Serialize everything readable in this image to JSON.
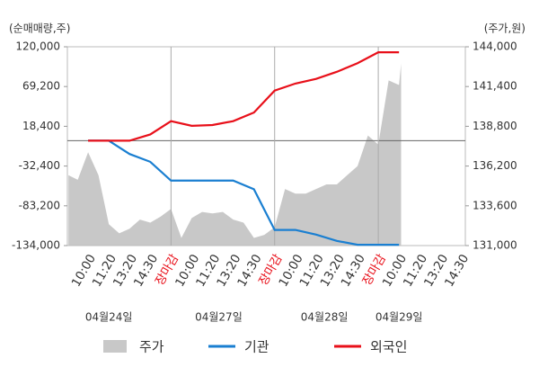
{
  "chart_data": {
    "type": "line",
    "y_axis_label": "(순매매량,주)",
    "y2_axis_label": "(주가,원)",
    "xlim": [
      -1,
      18.2
    ],
    "xticks": [
      {
        "value": 0,
        "label": "10:00"
      },
      {
        "value": 1,
        "label": "11:20"
      },
      {
        "value": 2,
        "label": "13:20"
      },
      {
        "value": 3,
        "label": "14:30"
      },
      {
        "value": 4,
        "label": "장마감",
        "color": "#e8101a"
      },
      {
        "value": 5,
        "label": "10:00"
      },
      {
        "value": 6,
        "label": "11:20"
      },
      {
        "value": 7,
        "label": "13:20"
      },
      {
        "value": 8,
        "label": "14:30"
      },
      {
        "value": 9,
        "label": "장마감",
        "color": "#e8101a"
      },
      {
        "value": 10,
        "label": "10:00"
      },
      {
        "value": 11,
        "label": "11:20"
      },
      {
        "value": 12,
        "label": "13:20"
      },
      {
        "value": 13,
        "label": "14:30"
      },
      {
        "value": 14,
        "label": "장마감",
        "color": "#e8101a"
      },
      {
        "value": 15,
        "label": "10:00"
      },
      {
        "value": 16,
        "label": "11:20"
      },
      {
        "value": 17,
        "label": "13:20"
      },
      {
        "value": 18,
        "label": "14:30"
      }
    ],
    "date_labels": [
      {
        "value": 1,
        "label": "04월24일"
      },
      {
        "value": 6.3,
        "label": "04월27일"
      },
      {
        "value": 11.4,
        "label": "04월28일"
      },
      {
        "value": 15,
        "label": "04월29일"
      }
    ],
    "ylim": [
      -134000,
      120000
    ],
    "yticks": [
      {
        "value": 120000,
        "label": "120,000"
      },
      {
        "value": 69200,
        "label": "69,200"
      },
      {
        "value": 18400,
        "label": "18,400"
      },
      {
        "value": -32400,
        "label": "-32,400"
      },
      {
        "value": -83200,
        "label": "-83,200"
      },
      {
        "value": -134000,
        "label": "-134,000"
      }
    ],
    "y2lim": [
      131000,
      144000
    ],
    "y2ticks": [
      {
        "value": 144000,
        "label": "144,000"
      },
      {
        "value": 141400,
        "label": "141,400"
      },
      {
        "value": 138800,
        "label": "138,800"
      },
      {
        "value": 136200,
        "label": "136,200"
      },
      {
        "value": 133600,
        "label": "133,600"
      },
      {
        "value": 131000,
        "label": "131,000"
      }
    ],
    "series": [
      {
        "name": "주가",
        "type": "area",
        "axis": "y2",
        "color": "#c8c8c8",
        "x": [
          -0.95,
          -0.5,
          0,
          0.5,
          1,
          1.5,
          2,
          2.5,
          3,
          3.5,
          4,
          4.5,
          5,
          5.5,
          6,
          6.5,
          7,
          7.5,
          8,
          8.5,
          9,
          9.5,
          10,
          10.5,
          11,
          11.5,
          12,
          12.5,
          13,
          13.5,
          14,
          14.5,
          15,
          15.1
        ],
        "values": [
          135600,
          135300,
          137100,
          135600,
          132400,
          131800,
          132100,
          132700,
          132500,
          132900,
          133400,
          131500,
          132800,
          133200,
          133100,
          133200,
          132700,
          132500,
          131500,
          131700,
          132200,
          134700,
          134400,
          134400,
          134700,
          135000,
          135000,
          135600,
          136200,
          138200,
          137600,
          141800,
          141500,
          142900
        ]
      },
      {
        "name": "기관",
        "type": "line",
        "color": "#1a7fd1",
        "x": [
          0,
          1,
          2,
          3,
          4,
          5,
          6,
          7,
          8,
          9,
          10,
          11,
          12,
          13,
          14,
          15
        ],
        "values": [
          0,
          0,
          -17000,
          -27000,
          -51000,
          -51000,
          -51000,
          -51000,
          -62000,
          -114000,
          -114000,
          -120000,
          -128000,
          -133000,
          -133000,
          -133000
        ]
      },
      {
        "name": "외국인",
        "type": "line",
        "color": "#e8101a",
        "x": [
          0,
          1,
          2,
          3,
          4,
          5,
          6,
          7,
          8,
          9,
          10,
          11,
          12,
          13,
          14,
          15
        ],
        "values": [
          0,
          0,
          0,
          8000,
          25000,
          19000,
          20000,
          25000,
          36000,
          64000,
          73000,
          79000,
          88000,
          99000,
          113000,
          113000
        ]
      }
    ]
  }
}
